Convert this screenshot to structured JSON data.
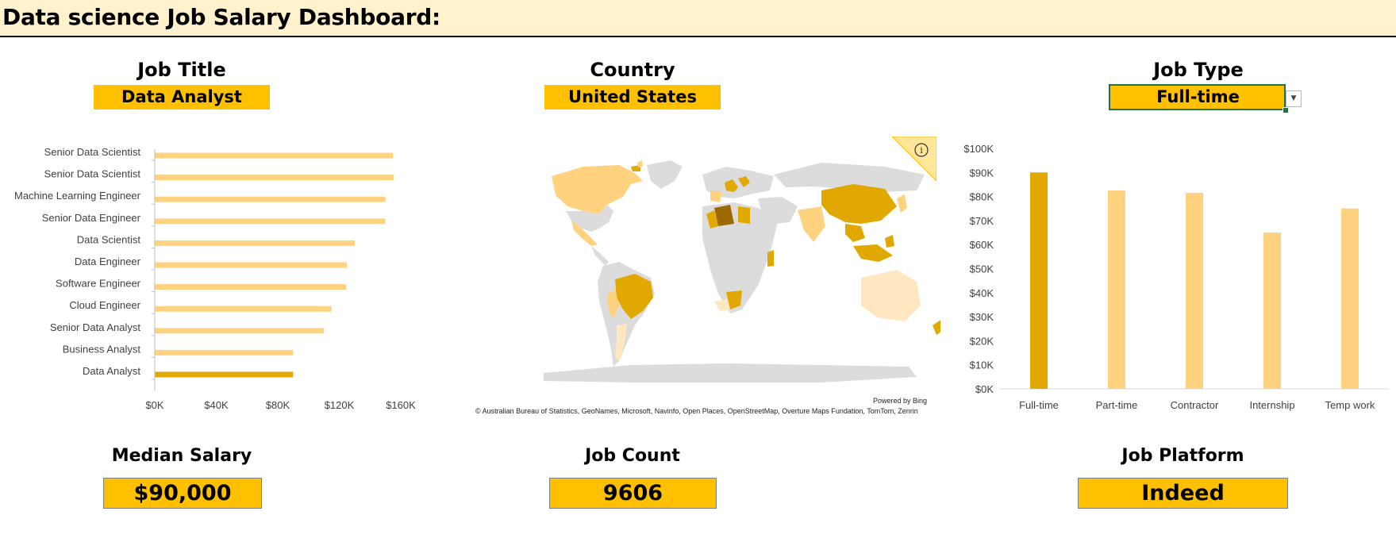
{
  "title": "Data science Job Salary Dashboard:",
  "filters": {
    "job_title": {
      "label": "Job Title",
      "value": "Data Analyst"
    },
    "country": {
      "label": "Country",
      "value": "United States"
    },
    "job_type": {
      "label": "Job Type",
      "value": "Full-time"
    }
  },
  "kpis": {
    "median_salary": {
      "label": "Median Salary",
      "value": "$90,000"
    },
    "job_count": {
      "label": "Job Count",
      "value": "9606"
    },
    "job_platform": {
      "label": "Job Platform",
      "value": "Indeed"
    }
  },
  "map": {
    "credit": "Powered by Bing",
    "attribution": "© Australian Bureau of Statistics, GeoNames, Microsoft, Navinfo, Open Places, OpenStreetMap, Overture Maps Fundation, TomTom, Zenrin",
    "info_icon": "info-icon"
  },
  "colors": {
    "highlight": "#e0a800",
    "bar": "#ffd280",
    "dark": "#9c6a00",
    "land": "#dcdcdc"
  },
  "chart_data": [
    {
      "type": "bar",
      "orientation": "horizontal",
      "categories": [
        "Senior Data Scientist",
        "Senior Data Scientist",
        "Machine Learning Engineer",
        "Senior Data Engineer",
        "Data Scientist",
        "Data Engineer",
        "Software Engineer",
        "Cloud Engineer",
        "Senior Data Analyst",
        "Business Analyst",
        "Data Analyst"
      ],
      "values": [
        155000,
        155500,
        150000,
        150000,
        130000,
        125000,
        124500,
        115000,
        110000,
        90000,
        90000
      ],
      "highlight": "Data Analyst",
      "xlim": [
        0,
        160000
      ],
      "ticks": [
        "$0K",
        "$40K",
        "$80K",
        "$120K",
        "$160K"
      ]
    },
    {
      "type": "bar",
      "categories": [
        "Full-time",
        "Part-time",
        "Contractor",
        "Internship",
        "Temp work"
      ],
      "values": [
        90000,
        82500,
        81500,
        65000,
        75000
      ],
      "highlight": "Full-time",
      "ylim": [
        0,
        100000
      ],
      "ticks": [
        "$0K",
        "$10K",
        "$20K",
        "$30K",
        "$40K",
        "$50K",
        "$60K",
        "$70K",
        "$80K",
        "$90K",
        "$100K"
      ]
    }
  ]
}
